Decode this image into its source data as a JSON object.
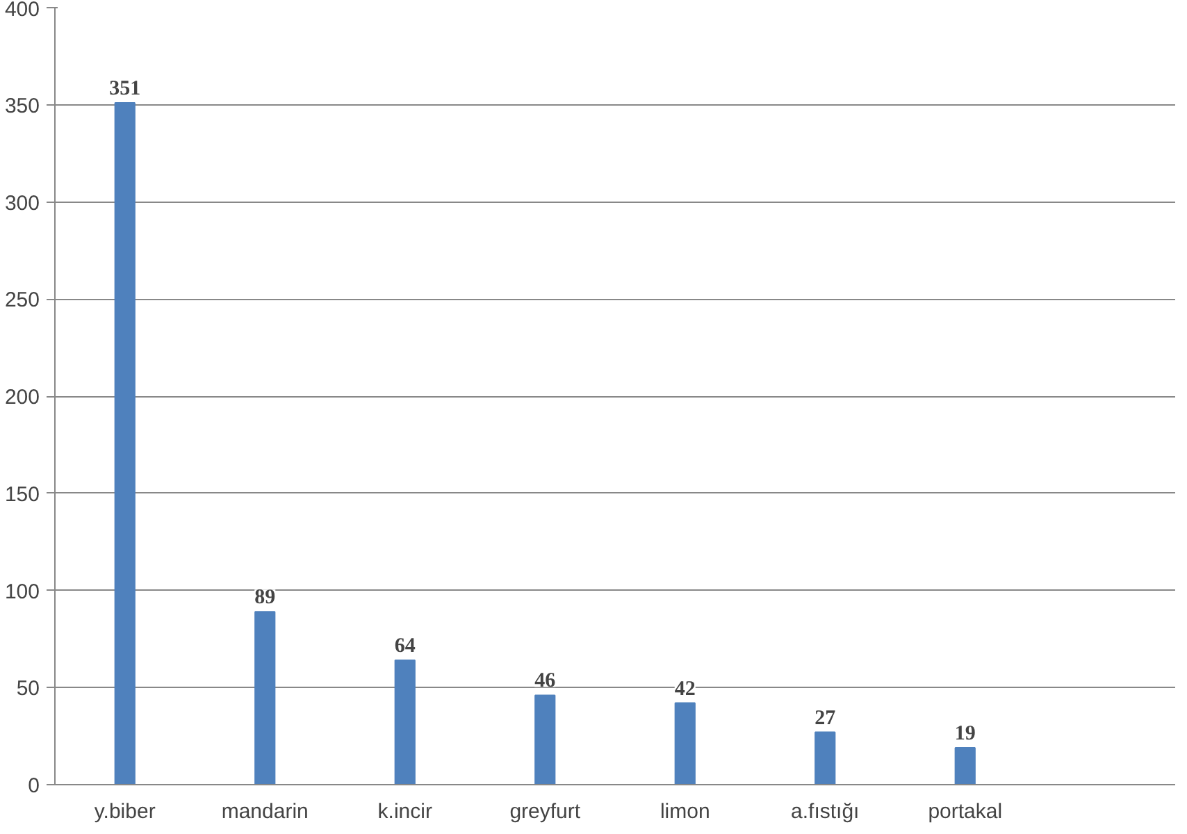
{
  "chart_data": {
    "type": "bar",
    "categories": [
      "y.biber",
      "mandarin",
      "k.incir",
      "greyfurt",
      "limon",
      "a.fıstığı",
      "portakal",
      null
    ],
    "values": [
      351,
      89,
      64,
      46,
      42,
      27,
      19,
      null
    ],
    "color": "#4f81bd",
    "ylim": [
      0,
      400
    ],
    "yticks": [
      0,
      50,
      100,
      150,
      200,
      250,
      300,
      350,
      400
    ],
    "grid": "y",
    "data_labels": true
  }
}
